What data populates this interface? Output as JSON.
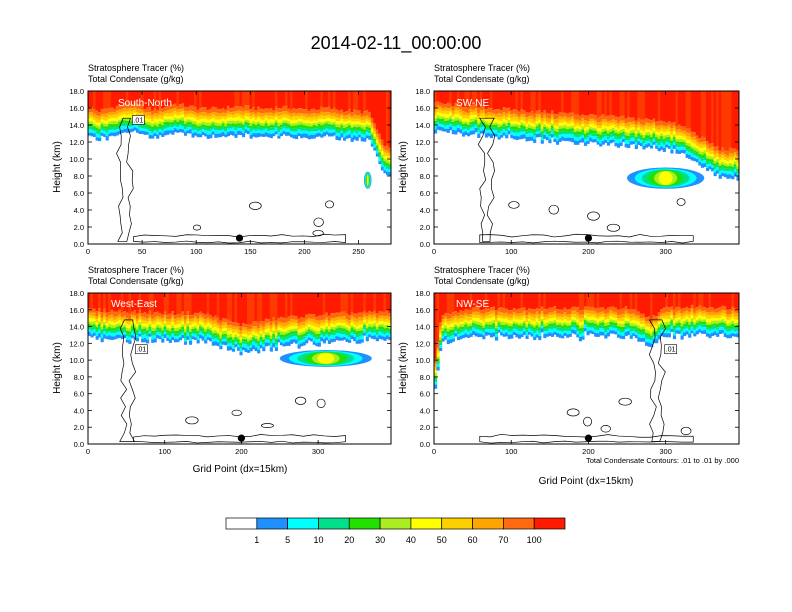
{
  "figure": {
    "title": "2014-02-11_00:00:00",
    "contour_note": "Total Condensate Contours: .01 to .01 by .000",
    "colorbar": {
      "colors": [
        "#ffffff",
        "#1e90ff",
        "#00ffff",
        "#00e08a",
        "#22e000",
        "#aaee22",
        "#ffff00",
        "#ffd000",
        "#ffa500",
        "#ff6a10",
        "#ff1a00"
      ],
      "labels": [
        "1",
        "5",
        "10",
        "20",
        "30",
        "40",
        "50",
        "60",
        "70",
        "100"
      ]
    }
  },
  "chart_data": [
    {
      "type": "heatmap",
      "title": "South-North",
      "line1": "Stratosphere Tracer   (%)",
      "line2": "Total Condensate   (g/kg)",
      "ylabel": "Height (km)",
      "xlabel": "",
      "xlim": [
        0,
        280
      ],
      "ylim": [
        0,
        18
      ],
      "xticks": [
        "0",
        "50",
        "100",
        "150",
        "200",
        "250"
      ],
      "yticks": [
        "0.0",
        "2.0",
        "4.0",
        "6.0",
        "8.0",
        "10.0",
        "12.0",
        "14.0",
        "16.0",
        "18.0"
      ],
      "marker_x": 140,
      "contour_label": ".01",
      "tracer_base_km": [
        [
          0,
          15.2
        ],
        [
          10,
          14.6
        ],
        [
          20,
          15.0
        ],
        [
          40,
          15.6
        ],
        [
          60,
          14.8
        ],
        [
          80,
          15.5
        ],
        [
          100,
          15.0
        ],
        [
          120,
          14.9
        ],
        [
          140,
          15.2
        ],
        [
          160,
          14.9
        ],
        [
          180,
          15.1
        ],
        [
          200,
          14.8
        ],
        [
          220,
          15.0
        ],
        [
          240,
          14.7
        ],
        [
          260,
          14.5
        ],
        [
          272,
          11.0
        ],
        [
          280,
          10.0
        ]
      ],
      "extra_regions": [
        {
          "x": [
            255,
            262
          ],
          "y": [
            6.5,
            8.5
          ]
        }
      ]
    },
    {
      "type": "heatmap",
      "title": "SW-NE",
      "line1": "Stratosphere Tracer   (%)",
      "line2": "Total Condensate   (g/kg)",
      "ylabel": "Height (km)",
      "xlabel": "",
      "xlim": [
        0,
        395
      ],
      "ylim": [
        0,
        18
      ],
      "xticks": [
        "0",
        "100",
        "200",
        "300"
      ],
      "yticks": [
        "0.0",
        "2.0",
        "4.0",
        "6.0",
        "8.0",
        "10.0",
        "12.0",
        "14.0",
        "16.0",
        "18.0"
      ],
      "marker_x": 200,
      "contour_label": "",
      "tracer_base_km": [
        [
          0,
          15.6
        ],
        [
          50,
          15.2
        ],
        [
          100,
          14.8
        ],
        [
          150,
          14.5
        ],
        [
          200,
          14.2
        ],
        [
          250,
          13.8
        ],
        [
          300,
          13.5
        ],
        [
          330,
          12.5
        ],
        [
          355,
          11.0
        ],
        [
          370,
          10.2
        ],
        [
          395,
          10.0
        ]
      ],
      "extra_regions": [
        {
          "x": [
            250,
            350
          ],
          "y": [
            6.5,
            9.0
          ]
        }
      ]
    },
    {
      "type": "heatmap",
      "title": "West-East",
      "line1": "Stratosphere Tracer   (%)",
      "line2": "Total Condensate   (g/kg)",
      "ylabel": "Height (km)",
      "xlabel": "Grid Point (dx=15km)",
      "xlim": [
        0,
        395
      ],
      "ylim": [
        0,
        18
      ],
      "xticks": [
        "0",
        "100",
        "200",
        "300"
      ],
      "yticks": [
        "0.0",
        "2.0",
        "4.0",
        "6.0",
        "8.0",
        "10.0",
        "12.0",
        "14.0",
        "16.0",
        "18.0"
      ],
      "marker_x": 200,
      "contour_label": ".01",
      "tracer_base_km": [
        [
          0,
          15.0
        ],
        [
          50,
          14.8
        ],
        [
          100,
          14.6
        ],
        [
          150,
          14.6
        ],
        [
          200,
          13.2
        ],
        [
          250,
          14.0
        ],
        [
          300,
          14.4
        ],
        [
          350,
          14.6
        ],
        [
          395,
          14.8
        ]
      ],
      "extra_regions": [
        {
          "x": [
            250,
            370
          ],
          "y": [
            9.2,
            11.2
          ]
        }
      ]
    },
    {
      "type": "heatmap",
      "title": "NW-SE",
      "line1": "Stratosphere Tracer   (%)",
      "line2": "Total Condensate   (g/kg)",
      "ylabel": "Height (km)",
      "xlabel": "Grid Point (dx=15km)",
      "xlim": [
        0,
        395
      ],
      "ylim": [
        0,
        18
      ],
      "xticks": [
        "0",
        "100",
        "200",
        "300"
      ],
      "yticks": [
        "0.0",
        "2.0",
        "4.0",
        "6.0",
        "8.0",
        "10.0",
        "12.0",
        "14.0",
        "16.0",
        "18.0"
      ],
      "marker_x": 200,
      "contour_label": ".01",
      "tracer_base_km": [
        [
          0,
          8.0
        ],
        [
          10,
          14.5
        ],
        [
          50,
          15.2
        ],
        [
          100,
          15.2
        ],
        [
          150,
          15.2
        ],
        [
          200,
          15.2
        ],
        [
          250,
          15.2
        ],
        [
          280,
          14.0
        ],
        [
          300,
          15.2
        ],
        [
          350,
          15.4
        ],
        [
          395,
          15.2
        ]
      ],
      "extra_regions": []
    }
  ]
}
